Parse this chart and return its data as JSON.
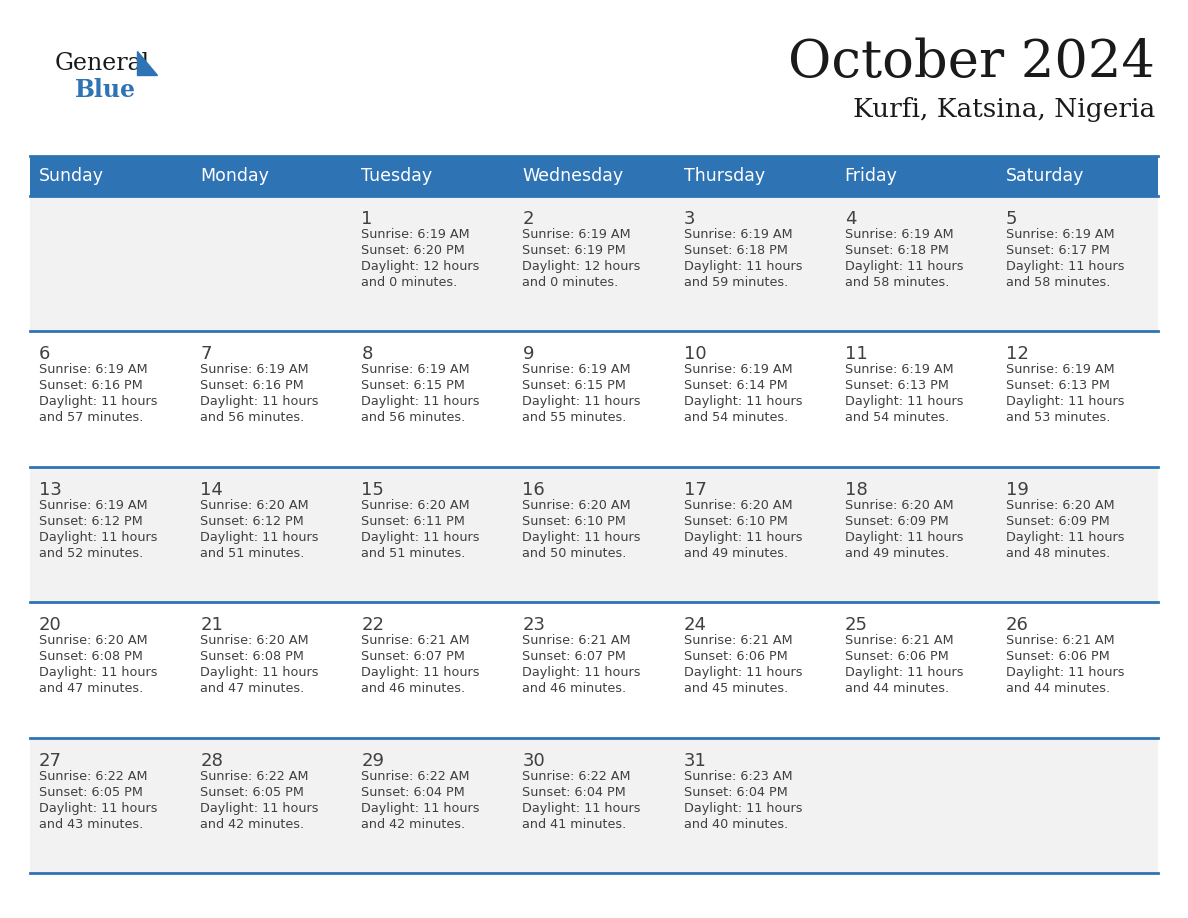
{
  "title": "October 2024",
  "subtitle": "Kurfi, Katsina, Nigeria",
  "header_days": [
    "Sunday",
    "Monday",
    "Tuesday",
    "Wednesday",
    "Thursday",
    "Friday",
    "Saturday"
  ],
  "header_bg": "#2E74B5",
  "header_text_color": "#FFFFFF",
  "cell_bg": "#FFFFFF",
  "cell_bg_alt": "#F2F2F2",
  "divider_color": "#2E74B5",
  "text_color": "#404040",
  "title_color": "#1a1a1a",
  "logo_general_color": "#1a1a1a",
  "logo_blue_color": "#2E74B5",
  "logo_triangle_color": "#2E74B5",
  "weeks": [
    [
      {
        "day": "",
        "sunrise": "",
        "sunset": "",
        "daylight": ""
      },
      {
        "day": "",
        "sunrise": "",
        "sunset": "",
        "daylight": ""
      },
      {
        "day": "1",
        "sunrise": "Sunrise: 6:19 AM",
        "sunset": "Sunset: 6:20 PM",
        "daylight": "Daylight: 12 hours\nand 0 minutes."
      },
      {
        "day": "2",
        "sunrise": "Sunrise: 6:19 AM",
        "sunset": "Sunset: 6:19 PM",
        "daylight": "Daylight: 12 hours\nand 0 minutes."
      },
      {
        "day": "3",
        "sunrise": "Sunrise: 6:19 AM",
        "sunset": "Sunset: 6:18 PM",
        "daylight": "Daylight: 11 hours\nand 59 minutes."
      },
      {
        "day": "4",
        "sunrise": "Sunrise: 6:19 AM",
        "sunset": "Sunset: 6:18 PM",
        "daylight": "Daylight: 11 hours\nand 58 minutes."
      },
      {
        "day": "5",
        "sunrise": "Sunrise: 6:19 AM",
        "sunset": "Sunset: 6:17 PM",
        "daylight": "Daylight: 11 hours\nand 58 minutes."
      }
    ],
    [
      {
        "day": "6",
        "sunrise": "Sunrise: 6:19 AM",
        "sunset": "Sunset: 6:16 PM",
        "daylight": "Daylight: 11 hours\nand 57 minutes."
      },
      {
        "day": "7",
        "sunrise": "Sunrise: 6:19 AM",
        "sunset": "Sunset: 6:16 PM",
        "daylight": "Daylight: 11 hours\nand 56 minutes."
      },
      {
        "day": "8",
        "sunrise": "Sunrise: 6:19 AM",
        "sunset": "Sunset: 6:15 PM",
        "daylight": "Daylight: 11 hours\nand 56 minutes."
      },
      {
        "day": "9",
        "sunrise": "Sunrise: 6:19 AM",
        "sunset": "Sunset: 6:15 PM",
        "daylight": "Daylight: 11 hours\nand 55 minutes."
      },
      {
        "day": "10",
        "sunrise": "Sunrise: 6:19 AM",
        "sunset": "Sunset: 6:14 PM",
        "daylight": "Daylight: 11 hours\nand 54 minutes."
      },
      {
        "day": "11",
        "sunrise": "Sunrise: 6:19 AM",
        "sunset": "Sunset: 6:13 PM",
        "daylight": "Daylight: 11 hours\nand 54 minutes."
      },
      {
        "day": "12",
        "sunrise": "Sunrise: 6:19 AM",
        "sunset": "Sunset: 6:13 PM",
        "daylight": "Daylight: 11 hours\nand 53 minutes."
      }
    ],
    [
      {
        "day": "13",
        "sunrise": "Sunrise: 6:19 AM",
        "sunset": "Sunset: 6:12 PM",
        "daylight": "Daylight: 11 hours\nand 52 minutes."
      },
      {
        "day": "14",
        "sunrise": "Sunrise: 6:20 AM",
        "sunset": "Sunset: 6:12 PM",
        "daylight": "Daylight: 11 hours\nand 51 minutes."
      },
      {
        "day": "15",
        "sunrise": "Sunrise: 6:20 AM",
        "sunset": "Sunset: 6:11 PM",
        "daylight": "Daylight: 11 hours\nand 51 minutes."
      },
      {
        "day": "16",
        "sunrise": "Sunrise: 6:20 AM",
        "sunset": "Sunset: 6:10 PM",
        "daylight": "Daylight: 11 hours\nand 50 minutes."
      },
      {
        "day": "17",
        "sunrise": "Sunrise: 6:20 AM",
        "sunset": "Sunset: 6:10 PM",
        "daylight": "Daylight: 11 hours\nand 49 minutes."
      },
      {
        "day": "18",
        "sunrise": "Sunrise: 6:20 AM",
        "sunset": "Sunset: 6:09 PM",
        "daylight": "Daylight: 11 hours\nand 49 minutes."
      },
      {
        "day": "19",
        "sunrise": "Sunrise: 6:20 AM",
        "sunset": "Sunset: 6:09 PM",
        "daylight": "Daylight: 11 hours\nand 48 minutes."
      }
    ],
    [
      {
        "day": "20",
        "sunrise": "Sunrise: 6:20 AM",
        "sunset": "Sunset: 6:08 PM",
        "daylight": "Daylight: 11 hours\nand 47 minutes."
      },
      {
        "day": "21",
        "sunrise": "Sunrise: 6:20 AM",
        "sunset": "Sunset: 6:08 PM",
        "daylight": "Daylight: 11 hours\nand 47 minutes."
      },
      {
        "day": "22",
        "sunrise": "Sunrise: 6:21 AM",
        "sunset": "Sunset: 6:07 PM",
        "daylight": "Daylight: 11 hours\nand 46 minutes."
      },
      {
        "day": "23",
        "sunrise": "Sunrise: 6:21 AM",
        "sunset": "Sunset: 6:07 PM",
        "daylight": "Daylight: 11 hours\nand 46 minutes."
      },
      {
        "day": "24",
        "sunrise": "Sunrise: 6:21 AM",
        "sunset": "Sunset: 6:06 PM",
        "daylight": "Daylight: 11 hours\nand 45 minutes."
      },
      {
        "day": "25",
        "sunrise": "Sunrise: 6:21 AM",
        "sunset": "Sunset: 6:06 PM",
        "daylight": "Daylight: 11 hours\nand 44 minutes."
      },
      {
        "day": "26",
        "sunrise": "Sunrise: 6:21 AM",
        "sunset": "Sunset: 6:06 PM",
        "daylight": "Daylight: 11 hours\nand 44 minutes."
      }
    ],
    [
      {
        "day": "27",
        "sunrise": "Sunrise: 6:22 AM",
        "sunset": "Sunset: 6:05 PM",
        "daylight": "Daylight: 11 hours\nand 43 minutes."
      },
      {
        "day": "28",
        "sunrise": "Sunrise: 6:22 AM",
        "sunset": "Sunset: 6:05 PM",
        "daylight": "Daylight: 11 hours\nand 42 minutes."
      },
      {
        "day": "29",
        "sunrise": "Sunrise: 6:22 AM",
        "sunset": "Sunset: 6:04 PM",
        "daylight": "Daylight: 11 hours\nand 42 minutes."
      },
      {
        "day": "30",
        "sunrise": "Sunrise: 6:22 AM",
        "sunset": "Sunset: 6:04 PM",
        "daylight": "Daylight: 11 hours\nand 41 minutes."
      },
      {
        "day": "31",
        "sunrise": "Sunrise: 6:23 AM",
        "sunset": "Sunset: 6:04 PM",
        "daylight": "Daylight: 11 hours\nand 40 minutes."
      },
      {
        "day": "",
        "sunrise": "",
        "sunset": "",
        "daylight": ""
      },
      {
        "day": "",
        "sunrise": "",
        "sunset": "",
        "daylight": ""
      }
    ]
  ]
}
